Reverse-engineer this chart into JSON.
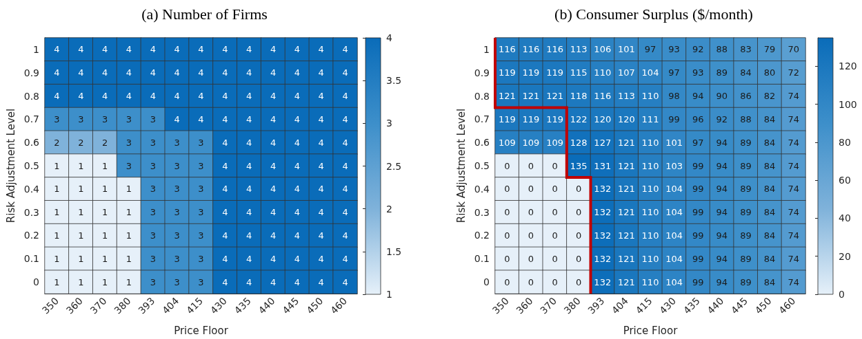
{
  "chart_data": [
    {
      "type": "heatmap",
      "title": "(a) Number of Firms",
      "xlabel": "Price Floor",
      "ylabel": "Risk Adjustment Level",
      "categories": [
        "350",
        "360",
        "370",
        "380",
        "393",
        "404",
        "415",
        "430",
        "435",
        "440",
        "445",
        "450",
        "460"
      ],
      "y_categories": [
        "1",
        "0.9",
        "0.8",
        "0.7",
        "0.6",
        "0.5",
        "0.4",
        "0.3",
        "0.2",
        "0.1",
        "0"
      ],
      "cells": [
        [
          4,
          4,
          4,
          4,
          4,
          4,
          4,
          4,
          4,
          4,
          4,
          4,
          4
        ],
        [
          4,
          4,
          4,
          4,
          4,
          4,
          4,
          4,
          4,
          4,
          4,
          4,
          4
        ],
        [
          4,
          4,
          4,
          4,
          4,
          4,
          4,
          4,
          4,
          4,
          4,
          4,
          4
        ],
        [
          3,
          3,
          3,
          3,
          3,
          4,
          4,
          4,
          4,
          4,
          4,
          4,
          4
        ],
        [
          2,
          2,
          2,
          3,
          3,
          3,
          3,
          4,
          4,
          4,
          4,
          4,
          4
        ],
        [
          1,
          1,
          1,
          3,
          3,
          3,
          3,
          4,
          4,
          4,
          4,
          4,
          4
        ],
        [
          1,
          1,
          1,
          1,
          3,
          3,
          3,
          4,
          4,
          4,
          4,
          4,
          4
        ],
        [
          1,
          1,
          1,
          1,
          3,
          3,
          3,
          4,
          4,
          4,
          4,
          4,
          4
        ],
        [
          1,
          1,
          1,
          1,
          3,
          3,
          3,
          4,
          4,
          4,
          4,
          4,
          4
        ],
        [
          1,
          1,
          1,
          1,
          3,
          3,
          3,
          4,
          4,
          4,
          4,
          4,
          4
        ],
        [
          1,
          1,
          1,
          1,
          3,
          3,
          3,
          4,
          4,
          4,
          4,
          4,
          4
        ]
      ],
      "data_labels": true,
      "clim": [
        1,
        4
      ],
      "cticks": [
        1,
        1.5,
        2,
        2.5,
        3,
        3.5,
        4
      ]
    },
    {
      "type": "heatmap",
      "title": "(b) Consumer Surplus ($/month)",
      "xlabel": "Price Floor",
      "ylabel": "Risk Adjustment Level",
      "categories": [
        "350",
        "360",
        "370",
        "380",
        "393",
        "404",
        "415",
        "430",
        "435",
        "440",
        "445",
        "450",
        "460"
      ],
      "y_categories": [
        "1",
        "0.9",
        "0.8",
        "0.7",
        "0.6",
        "0.5",
        "0.4",
        "0.3",
        "0.2",
        "0.1",
        "0"
      ],
      "cells": [
        [
          116,
          116,
          116,
          113,
          106,
          101,
          97,
          93,
          92,
          88,
          83,
          79,
          70
        ],
        [
          119,
          119,
          119,
          115,
          110,
          107,
          104,
          97,
          93,
          89,
          84,
          80,
          72
        ],
        [
          121,
          121,
          121,
          118,
          116,
          113,
          110,
          98,
          94,
          90,
          86,
          82,
          74
        ],
        [
          119,
          119,
          119,
          122,
          120,
          120,
          111,
          99,
          96,
          92,
          88,
          84,
          74
        ],
        [
          109,
          109,
          109,
          128,
          127,
          121,
          110,
          101,
          97,
          94,
          89,
          84,
          74
        ],
        [
          0,
          0,
          0,
          135,
          131,
          121,
          110,
          103,
          99,
          94,
          89,
          84,
          74
        ],
        [
          0,
          0,
          0,
          0,
          132,
          121,
          110,
          104,
          99,
          94,
          89,
          84,
          74
        ],
        [
          0,
          0,
          0,
          0,
          132,
          121,
          110,
          104,
          99,
          94,
          89,
          84,
          74
        ],
        [
          0,
          0,
          0,
          0,
          132,
          121,
          110,
          104,
          99,
          94,
          89,
          84,
          74
        ],
        [
          0,
          0,
          0,
          0,
          132,
          121,
          110,
          104,
          99,
          94,
          89,
          84,
          74
        ],
        [
          0,
          0,
          0,
          0,
          132,
          121,
          110,
          104,
          99,
          94,
          89,
          84,
          74
        ]
      ],
      "data_labels": true,
      "clim": [
        0,
        135
      ],
      "cticks": [
        0,
        20,
        40,
        60,
        80,
        100,
        120
      ]
    }
  ]
}
